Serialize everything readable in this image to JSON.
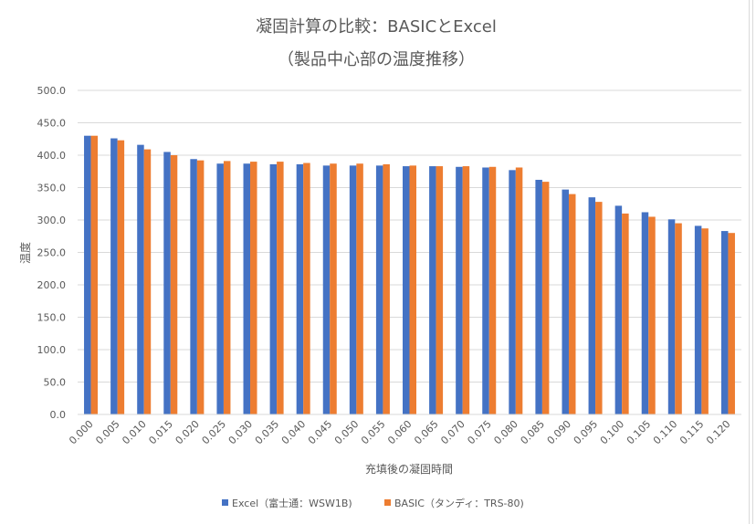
{
  "chart_data": {
    "type": "bar",
    "title": "凝固計算の比較：BASICとExcel",
    "subtitle": "（製品中心部の温度推移）",
    "xlabel": "充填後の凝固時間",
    "ylabel": "温度",
    "ylim": [
      0,
      500
    ],
    "ytick_step": 50,
    "ytick_labels": [
      "0.0",
      "50.0",
      "100.0",
      "150.0",
      "200.0",
      "250.0",
      "300.0",
      "350.0",
      "400.0",
      "450.0",
      "500.0"
    ],
    "grid": true,
    "legend_position": "bottom",
    "categories": [
      "0.000",
      "0.005",
      "0.010",
      "0.015",
      "0.020",
      "0.025",
      "0.030",
      "0.035",
      "0.040",
      "0.045",
      "0.050",
      "0.055",
      "0.060",
      "0.065",
      "0.070",
      "0.075",
      "0.080",
      "0.085",
      "0.090",
      "0.095",
      "0.100",
      "0.105",
      "0.110",
      "0.115",
      "0.120"
    ],
    "series": [
      {
        "name": "Excel（富士通：WSW1B)",
        "color": "#4472C4",
        "values": [
          430,
          426,
          416,
          405,
          394,
          387,
          387,
          386,
          386,
          384,
          384,
          384,
          383,
          383,
          382,
          381,
          377,
          362,
          347,
          335,
          322,
          312,
          301,
          291,
          283
        ]
      },
      {
        "name": "BASIC（タンディ：TRS-80)",
        "color": "#ED7D31",
        "values": [
          430,
          423,
          409,
          400,
          392,
          391,
          390,
          390,
          388,
          387,
          387,
          386,
          384,
          383,
          383,
          382,
          381,
          359,
          340,
          328,
          310,
          305,
          295,
          287,
          280
        ]
      }
    ]
  }
}
